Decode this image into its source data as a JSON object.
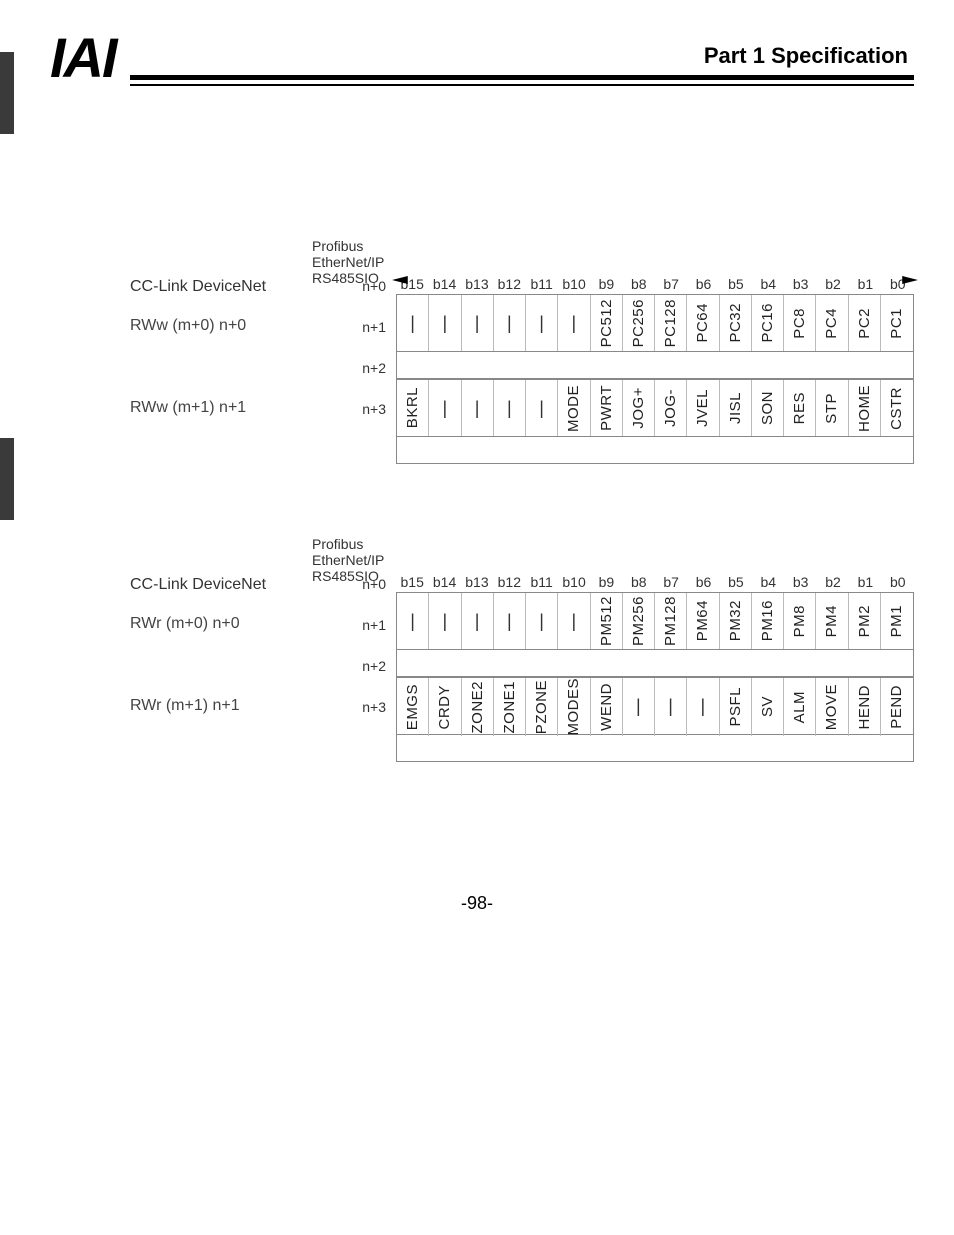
{
  "header": {
    "logo": "IAI",
    "title": "Part 1  Specification"
  },
  "page_number": "-98-",
  "bit_labels": [
    "b15",
    "b14",
    "b13",
    "b12",
    "b11",
    "b10",
    "b9",
    "b8",
    "b7",
    "b6",
    "b5",
    "b4",
    "b3",
    "b2",
    "b1",
    "b0"
  ],
  "proto_title": {
    "line1": "CC-Link   DeviceNet",
    "line2": "Profibus",
    "line3": "EtherNet/IP",
    "line4": "RS485SIO"
  },
  "blocks": [
    {
      "prefix": "RWw",
      "address_labels": [
        "n+0",
        "n+1",
        "n+2",
        "n+3"
      ],
      "left_labels": [
        "RWw (m+0)  n+0",
        "RWw (m+1)  n+1"
      ],
      "rows": [
        {
          "type": "data",
          "cells": [
            "—",
            "—",
            "—",
            "—",
            "—",
            "—",
            "PC512",
            "PC256",
            "PC128",
            "PC64",
            "PC32",
            "PC16",
            "PC8",
            "PC4",
            "PC2",
            "PC1"
          ]
        },
        {
          "type": "slim"
        },
        {
          "type": "data",
          "cells": [
            "BKRL",
            "—",
            "—",
            "—",
            "—",
            "MODE",
            "PWRT",
            "JOG+",
            "JOG-",
            "JVEL",
            "JISL",
            "SON",
            "RES",
            "STP",
            "HOME",
            "CSTR"
          ]
        },
        {
          "type": "slim"
        }
      ],
      "show_arrow": true
    },
    {
      "prefix": "RWr",
      "address_labels": [
        "n+0",
        "n+1",
        "n+2",
        "n+3"
      ],
      "left_labels": [
        "RWr (m+0)  n+0",
        "RWr (m+1)  n+1"
      ],
      "rows": [
        {
          "type": "data",
          "cells": [
            "—",
            "—",
            "—",
            "—",
            "—",
            "—",
            "PM512",
            "PM256",
            "PM128",
            "PM64",
            "PM32",
            "PM16",
            "PM8",
            "PM4",
            "PM2",
            "PM1"
          ]
        },
        {
          "type": "slim"
        },
        {
          "type": "data",
          "cells": [
            "EMGS",
            "CRDY",
            "ZONE2",
            "ZONE1",
            "PZONE",
            "MODES",
            "WEND",
            "—",
            "—",
            "—",
            "PSFL",
            "SV",
            "ALM",
            "MOVE",
            "HEND",
            "PEND"
          ]
        },
        {
          "type": "slim"
        }
      ],
      "show_arrow": false
    }
  ]
}
